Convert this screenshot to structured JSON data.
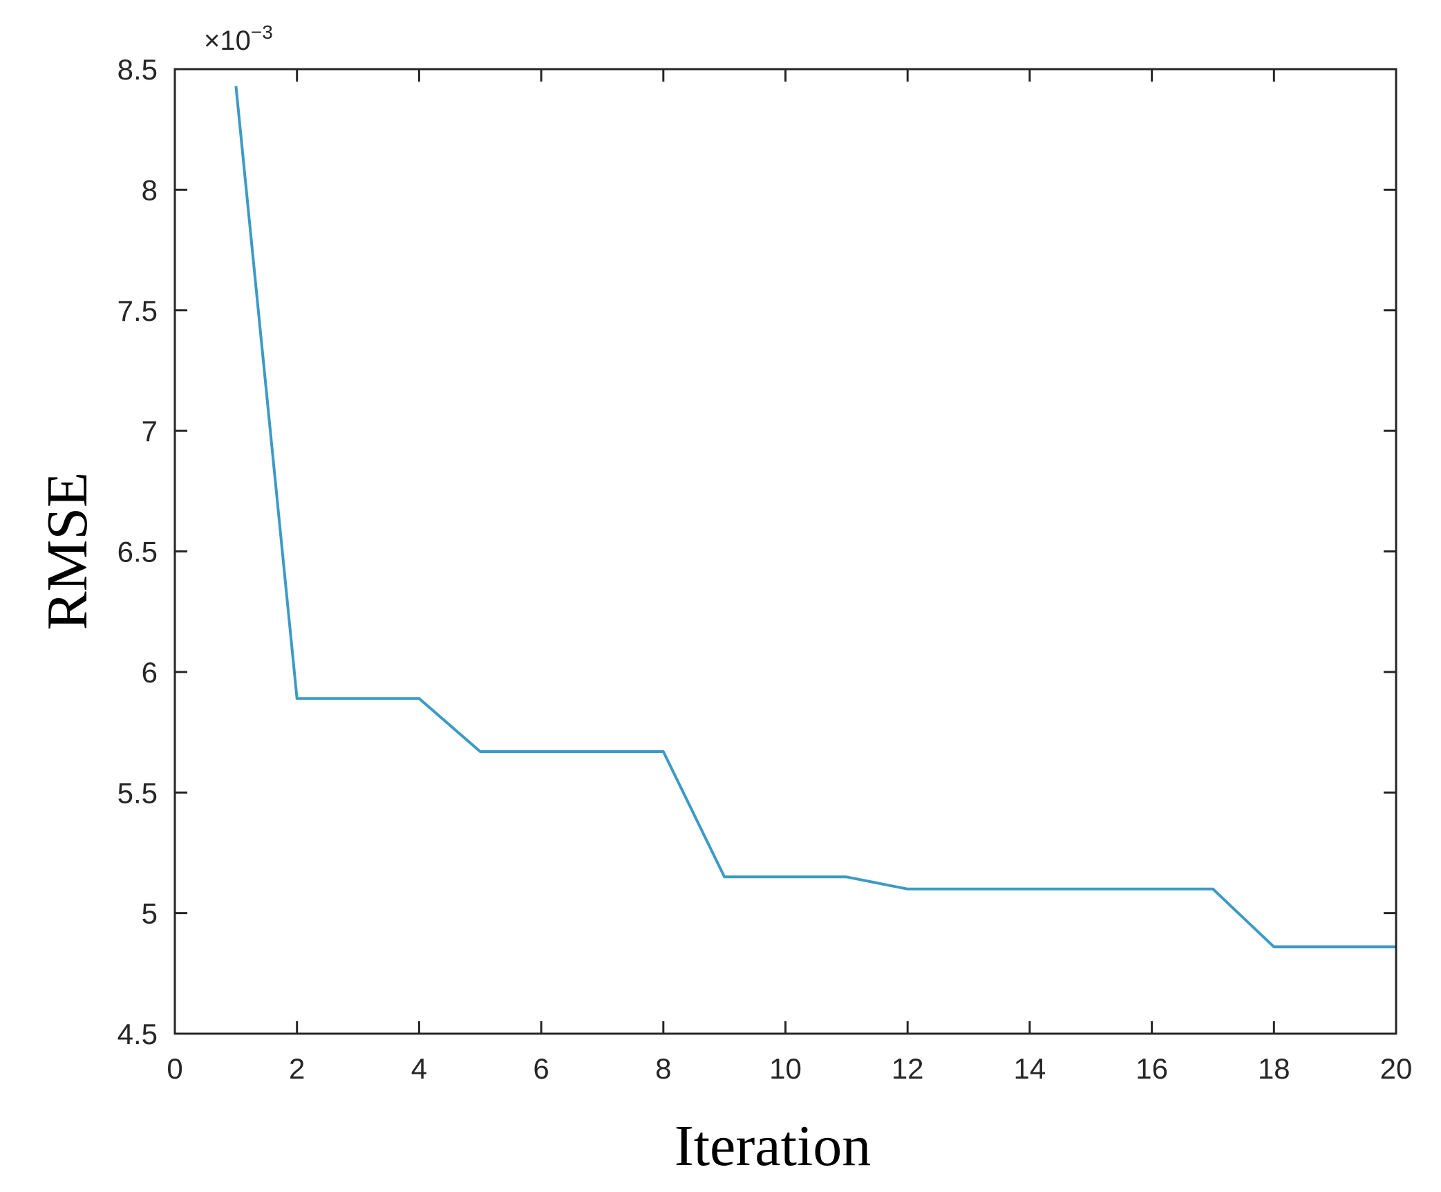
{
  "chart_data": {
    "type": "line",
    "xlabel": "Iteration",
    "ylabel": "RMSE",
    "y_multiplier": {
      "base": "×10",
      "exponent": "−3"
    },
    "xlim": [
      0,
      20
    ],
    "ylim": [
      4.5,
      8.5
    ],
    "x_ticks": [
      0,
      2,
      4,
      6,
      8,
      10,
      12,
      14,
      16,
      18,
      20
    ],
    "y_ticks": [
      4.5,
      5,
      5.5,
      6,
      6.5,
      7,
      7.5,
      8,
      8.5
    ],
    "x_tick_labels": [
      "0",
      "2",
      "4",
      "6",
      "8",
      "10",
      "12",
      "14",
      "16",
      "18",
      "20"
    ],
    "y_tick_labels": [
      "4.5",
      "5",
      "5.5",
      "6",
      "6.5",
      "7",
      "7.5",
      "8",
      "8.5"
    ],
    "grid": false,
    "series": [
      {
        "color": "#3c9ac6",
        "x": [
          1,
          2,
          3,
          4,
          5,
          6,
          7,
          8,
          9,
          10,
          11,
          12,
          13,
          14,
          15,
          16,
          17,
          18,
          19,
          20
        ],
        "y": [
          8.43,
          5.89,
          5.89,
          5.89,
          5.67,
          5.67,
          5.67,
          5.67,
          5.15,
          5.15,
          5.15,
          5.1,
          5.1,
          5.1,
          5.1,
          5.1,
          5.1,
          4.86,
          4.86,
          4.86
        ]
      }
    ]
  }
}
